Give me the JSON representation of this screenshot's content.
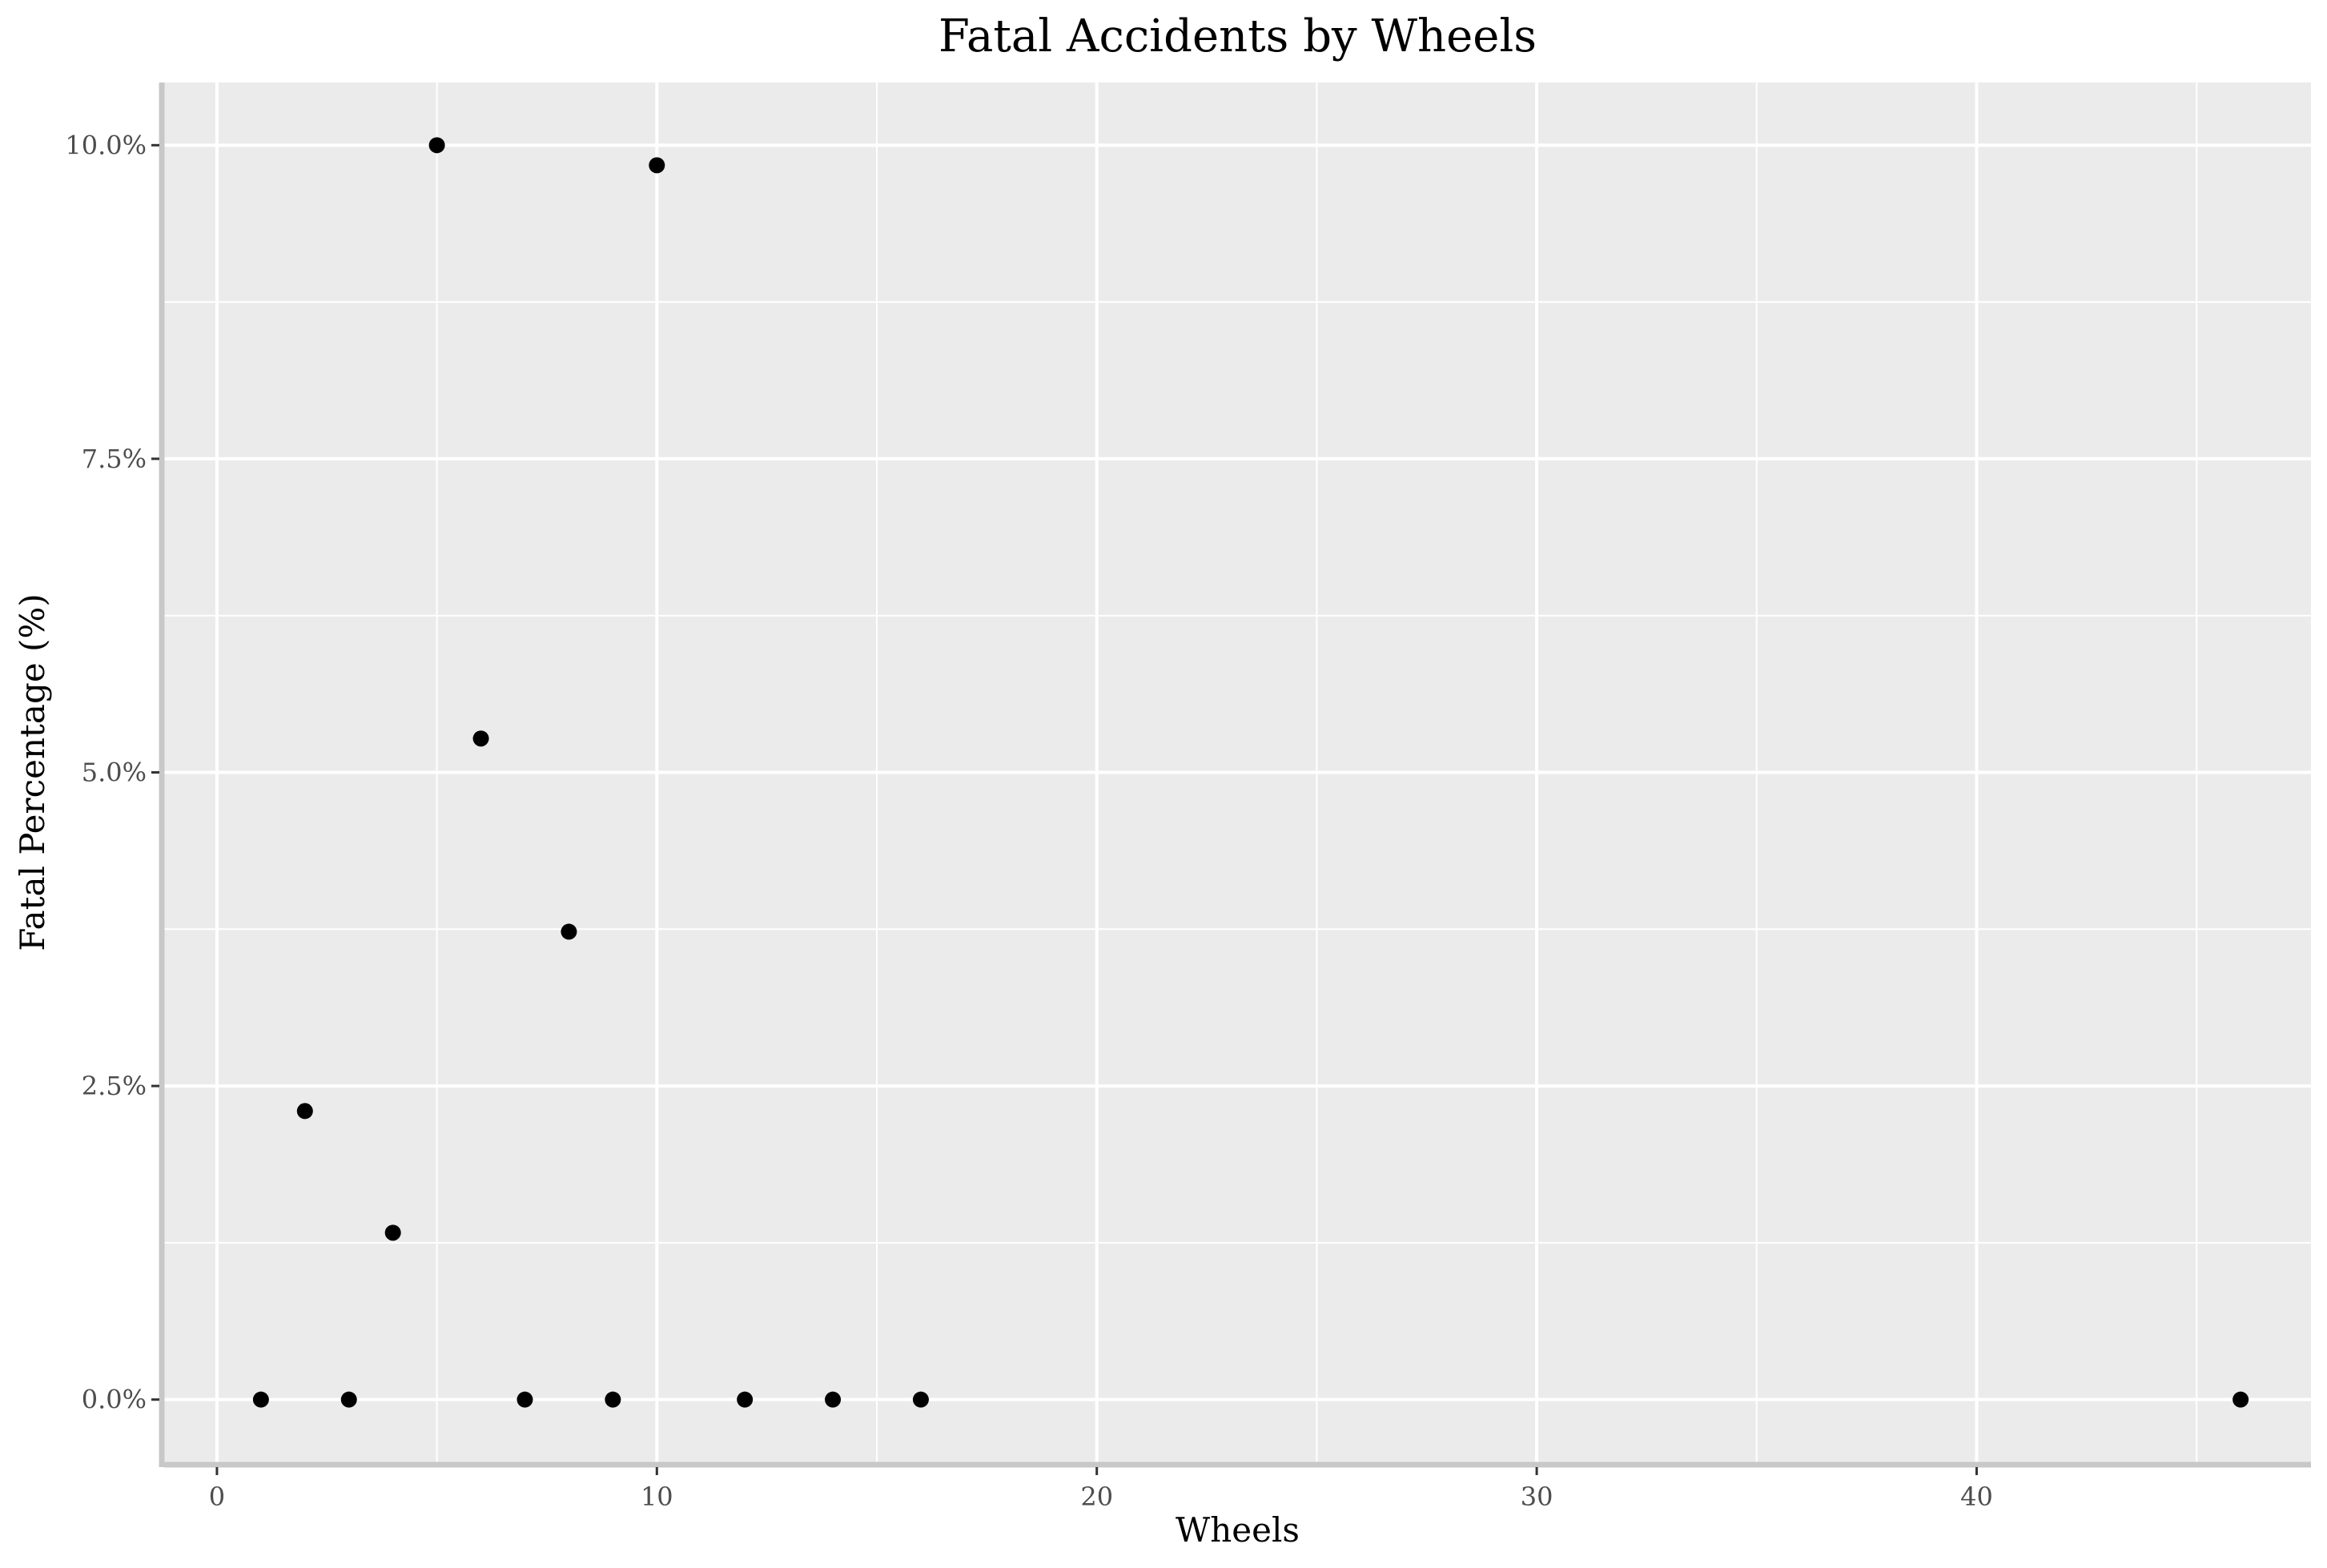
{
  "chart_data": {
    "type": "scatter",
    "title": "Fatal Accidents by Wheels",
    "xlabel": "Wheels",
    "ylabel": "Fatal Percentage (%)",
    "xlim": [
      -1.2,
      47.6
    ],
    "ylim": [
      -0.5,
      10.5
    ],
    "x_ticks": [
      0,
      10,
      20,
      30,
      40
    ],
    "x_tick_labels": [
      "0",
      "10",
      "20",
      "30",
      "40"
    ],
    "x_minor_ticks": [
      5,
      15,
      25,
      35,
      45
    ],
    "y_ticks": [
      0,
      2.5,
      5,
      7.5,
      10
    ],
    "y_tick_labels": [
      "0.0%",
      "2.5%",
      "5.0%",
      "7.5%",
      "10.0%"
    ],
    "y_minor_ticks": [
      1.25,
      3.75,
      6.25,
      8.75
    ],
    "grid": true,
    "legend": "none",
    "colors": {
      "panel_background": "#ebebeb",
      "grid": "#ffffff",
      "axis_line": "#c8c8c8",
      "point": "#000000",
      "tick_text": "#4d4d4d"
    },
    "series": [
      {
        "x": [
          1,
          2,
          3,
          4,
          5,
          6,
          7,
          8,
          9,
          10,
          12,
          14,
          16,
          46
        ],
        "y": [
          0.0,
          2.3,
          0.0,
          1.33,
          10.0,
          5.27,
          0.0,
          3.73,
          0.0,
          9.84,
          0.0,
          0.0,
          0.0,
          0.0
        ]
      }
    ]
  }
}
